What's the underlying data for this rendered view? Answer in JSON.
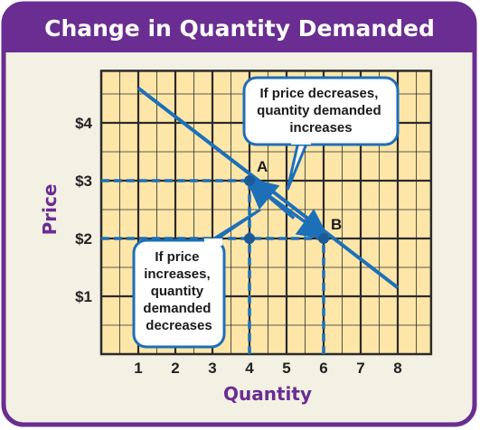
{
  "title": "Change in Quantity Demanded",
  "colors": {
    "frame_purple": "#6a2d91",
    "panel_bg": "#f3f0e4",
    "grid_fill": "#fde6a8",
    "grid_line": "#2a2a2a",
    "demand_line": "#1d6fb8",
    "dashed_guide": "#1d6fb8",
    "point": "#1d5a96",
    "bubble_border": "#1d6fb8",
    "bubble_bg": "#ffffff"
  },
  "chart_data": {
    "type": "line",
    "title": "Change in Quantity Demanded",
    "xlabel": "Quantity",
    "ylabel": "Price",
    "xlim": [
      0,
      8.9
    ],
    "ylim": [
      0,
      4.9
    ],
    "x_ticks": [
      1,
      2,
      3,
      4,
      5,
      6,
      7,
      8
    ],
    "x_tick_labels": [
      "1",
      "2",
      "3",
      "4",
      "5",
      "6",
      "7",
      "8"
    ],
    "y_ticks": [
      1,
      2,
      3,
      4
    ],
    "y_tick_labels": [
      "$1",
      "$2",
      "$3",
      "$4"
    ],
    "grid": true,
    "demand_curve": {
      "x": [
        1,
        8
      ],
      "y": [
        4.6,
        1.15
      ]
    },
    "points": [
      {
        "label": "A",
        "x": 4,
        "y": 3
      },
      {
        "label": "",
        "x": 4,
        "y": 2
      },
      {
        "label": "B",
        "x": 6,
        "y": 2
      }
    ],
    "guides": [
      {
        "x1": 0,
        "y1": 3,
        "x2": 4,
        "y2": 3
      },
      {
        "x1": 0,
        "y1": 2,
        "x2": 6,
        "y2": 2
      },
      {
        "x1": 4,
        "y1": 0,
        "x2": 4,
        "y2": 3
      },
      {
        "x1": 6,
        "y1": 0,
        "x2": 6,
        "y2": 2
      }
    ],
    "annotations": [
      {
        "id": "decrease",
        "lines": [
          "If price decreases,",
          "quantity demanded",
          "increases"
        ],
        "arrow": {
          "from": [
            4.5,
            2.75
          ],
          "to": [
            5.9,
            2.1
          ]
        }
      },
      {
        "id": "increase",
        "lines": [
          "If price",
          "increases,",
          "quantity",
          "demanded",
          "decreases"
        ],
        "arrow": {
          "from": [
            5.2,
            2.35
          ],
          "to": [
            4.15,
            2.92
          ]
        }
      }
    ]
  }
}
